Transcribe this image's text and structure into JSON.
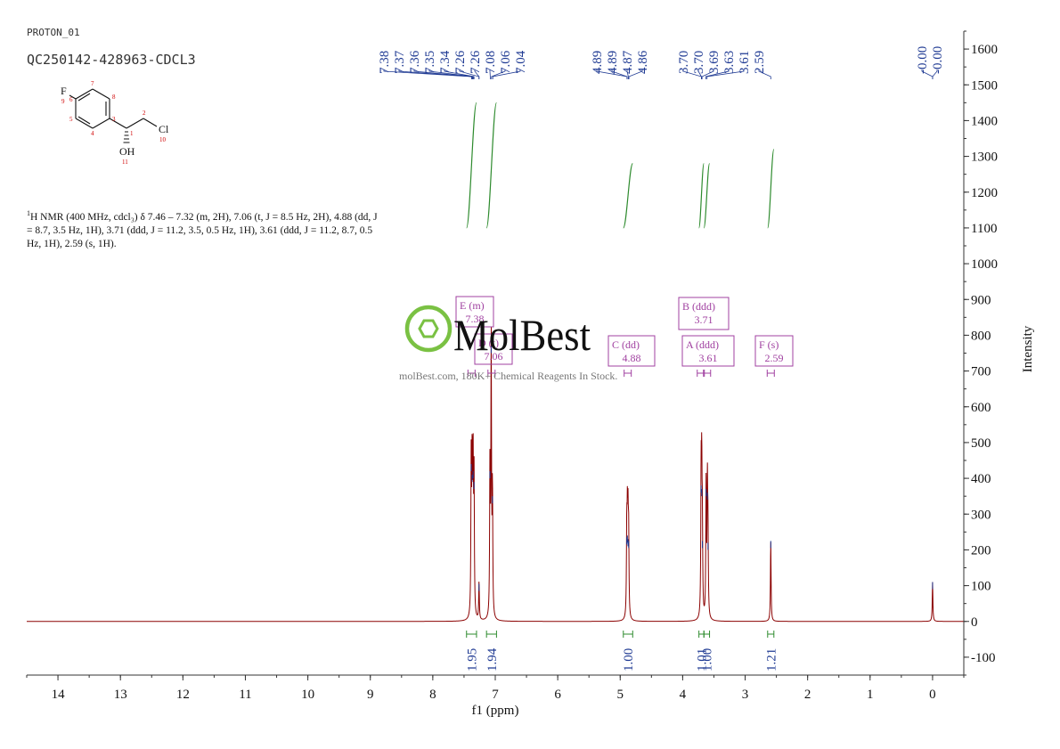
{
  "header": {
    "experiment": "PROTON_01",
    "sample": "QC250142-428963-CDCL3"
  },
  "structure": {
    "atoms": {
      "F": "F",
      "f_num": "9",
      "c1": "1",
      "c2": "2",
      "c3": "3",
      "c4": "4",
      "c5": "5",
      "c6": "6",
      "c7": "7",
      "c8": "8",
      "Cl": "Cl",
      "cl_num": "10",
      "OH": "OH",
      "oh_num": "11"
    }
  },
  "description": {
    "nucleus": "1",
    "text": "H NMR (400 MHz, cdcl₃) δ 7.46 – 7.32 (m, 2H), 7.06 (t, J = 8.5 Hz, 2H), 4.88 (dd, J = 8.7, 3.5 Hz, 1H), 3.71 (ddd, J = 11.2, 3.5, 0.5 Hz, 1H), 3.61 (ddd, J = 11.2, 8.7, 0.5 Hz, 1H), 2.59 (s, 1H)."
  },
  "watermark": {
    "brand": "MolBest",
    "tagline": "molBest.com, 180K+ Chemical Reagents In Stock."
  },
  "colors": {
    "spectrum": "#8b0000",
    "peak_label": "#1f3a93",
    "integral": "#2e8b2e",
    "multiplet": "#a040a0",
    "axis": "#333333",
    "watermark": "#7ac143"
  },
  "chart_data": {
    "type": "line",
    "xlabel": "f1 (ppm)",
    "ylabel": "Intensity",
    "xlim": [
      14.5,
      -0.5
    ],
    "ylim": [
      -150,
      1650
    ],
    "x_ticks": [
      14,
      13,
      12,
      11,
      10,
      9,
      8,
      7,
      6,
      5,
      4,
      3,
      2,
      1,
      0
    ],
    "y_ticks": [
      -100,
      0,
      100,
      200,
      300,
      400,
      500,
      600,
      700,
      800,
      900,
      1000,
      1100,
      1200,
      1300,
      1400,
      1500,
      1600
    ],
    "peak_labels": [
      {
        "group": "aromatic",
        "labels": [
          "7.38",
          "7.37",
          "7.36",
          "7.35",
          "7.34",
          "7.26",
          "7.26",
          "7.08",
          "7.06",
          "7.04"
        ],
        "positions": [
          7.38,
          7.37,
          7.36,
          7.35,
          7.34,
          7.26,
          7.26,
          7.08,
          7.06,
          7.04
        ]
      },
      {
        "group": "ch",
        "labels": [
          "4.89",
          "4.89",
          "4.87",
          "4.86"
        ],
        "positions": [
          4.89,
          4.89,
          4.87,
          4.86
        ]
      },
      {
        "group": "ch2",
        "labels": [
          "3.70",
          "3.70",
          "3.69",
          "3.63",
          "3.61",
          "2.59"
        ],
        "positions": [
          3.7,
          3.7,
          3.69,
          3.63,
          3.61,
          2.59
        ]
      },
      {
        "group": "tms",
        "labels": [
          "-0.00",
          "-0.00"
        ],
        "positions": [
          0.0,
          0.0
        ]
      }
    ],
    "peaks": [
      {
        "ppm": 7.385,
        "height": 440
      },
      {
        "ppm": 7.37,
        "height": 410
      },
      {
        "ppm": 7.355,
        "height": 420
      },
      {
        "ppm": 7.34,
        "height": 390
      },
      {
        "ppm": 7.26,
        "height": 105
      },
      {
        "ppm": 7.085,
        "height": 420
      },
      {
        "ppm": 7.065,
        "height": 770
      },
      {
        "ppm": 7.045,
        "height": 350
      },
      {
        "ppm": 4.895,
        "height": 235
      },
      {
        "ppm": 4.885,
        "height": 240
      },
      {
        "ppm": 4.875,
        "height": 230
      },
      {
        "ppm": 4.865,
        "height": 225
      },
      {
        "ppm": 3.705,
        "height": 380
      },
      {
        "ppm": 3.695,
        "height": 370
      },
      {
        "ppm": 3.685,
        "height": 225
      },
      {
        "ppm": 3.625,
        "height": 370
      },
      {
        "ppm": 3.605,
        "height": 360
      },
      {
        "ppm": 3.595,
        "height": 220
      },
      {
        "ppm": 2.59,
        "height": 225
      },
      {
        "ppm": 0.0,
        "height": 110
      }
    ],
    "integrals": [
      {
        "from": 7.46,
        "to": 7.3,
        "value": "1.95",
        "y_start": 1100,
        "y_end": 1450
      },
      {
        "from": 7.14,
        "to": 6.98,
        "value": "1.94",
        "y_start": 1100,
        "y_end": 1450
      },
      {
        "from": 4.95,
        "to": 4.8,
        "value": "1.00",
        "y_start": 1100,
        "y_end": 1280
      },
      {
        "from": 3.74,
        "to": 3.66,
        "value": "1.01",
        "y_start": 1100,
        "y_end": 1280
      },
      {
        "from": 3.66,
        "to": 3.57,
        "value": "1.00",
        "y_start": 1100,
        "y_end": 1280
      },
      {
        "from": 2.64,
        "to": 2.54,
        "value": "1.21",
        "y_start": 1100,
        "y_end": 1320
      }
    ],
    "multiplets": [
      {
        "label": "E (m)",
        "shift": "7.38",
        "ppm": 7.38
      },
      {
        "label": "D (t)",
        "shift": "7.06",
        "ppm": 7.06
      },
      {
        "label": "C (dd)",
        "shift": "4.88",
        "ppm": 4.88
      },
      {
        "label": "B (ddd)",
        "shift": "3.71",
        "ppm": 3.71
      },
      {
        "label": "A (ddd)",
        "shift": "3.61",
        "ppm": 3.61
      },
      {
        "label": "F (s)",
        "shift": "2.59",
        "ppm": 2.59
      }
    ]
  }
}
